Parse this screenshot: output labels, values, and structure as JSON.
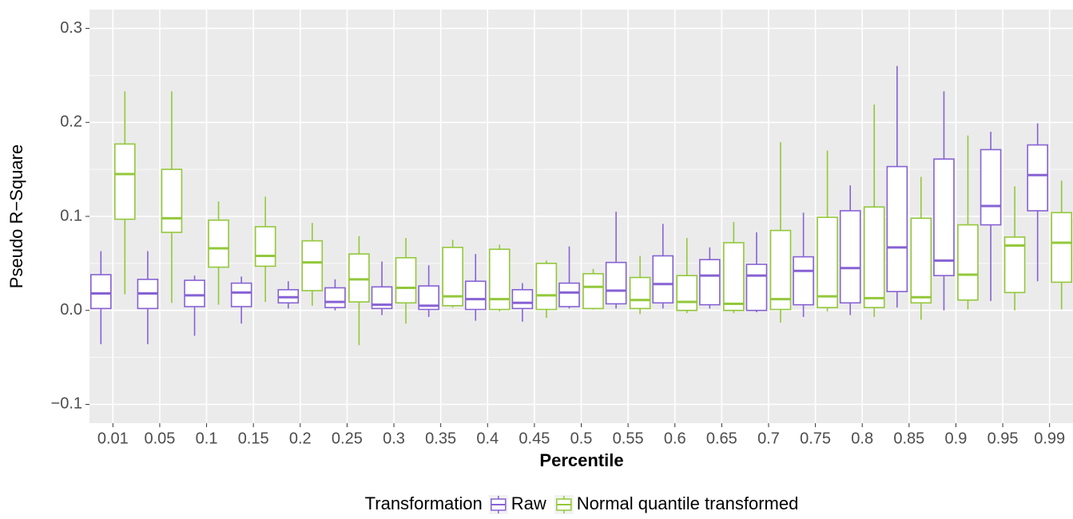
{
  "chart_data": {
    "type": "boxplot",
    "x_label": "Percentile",
    "y_label": "Pseudo R−Square",
    "legend_title": "Transformation",
    "legend_position": "bottom",
    "grid": true,
    "categories": [
      "0.01",
      "0.05",
      "0.1",
      "0.15",
      "0.2",
      "0.25",
      "0.3",
      "0.35",
      "0.4",
      "0.45",
      "0.5",
      "0.55",
      "0.6",
      "0.65",
      "0.7",
      "0.75",
      "0.8",
      "0.85",
      "0.9",
      "0.95",
      "0.99"
    ],
    "ylim": [
      -0.12,
      0.32
    ],
    "yticks": [
      {
        "value": -0.1,
        "label": "−0.1"
      },
      {
        "value": 0,
        "label": "0.0"
      },
      0.1,
      0.2,
      0.3
    ],
    "series": [
      {
        "name": "Raw",
        "color": "#8762d4",
        "low": [
          -0.036,
          -0.036,
          -0.027,
          -0.014,
          0.002,
          0,
          -0.005,
          -0.007,
          -0.011,
          -0.012,
          0.002,
          0.002,
          0.002,
          0.002,
          -0.002,
          -0.007,
          -0.005,
          0.003,
          0,
          0.01,
          0.031
        ],
        "q1": [
          0.002,
          0.002,
          0.004,
          0.004,
          0.008,
          0.003,
          0.002,
          0.001,
          0.001,
          0.002,
          0.004,
          0.007,
          0.008,
          0.006,
          0,
          0.006,
          0.008,
          0.02,
          0.037,
          0.091,
          0.106
        ],
        "median": [
          0.018,
          0.018,
          0.016,
          0.019,
          0.014,
          0.009,
          0.006,
          0.005,
          0.012,
          0.008,
          0.019,
          0.021,
          0.028,
          0.037,
          0.037,
          0.042,
          0.045,
          0.067,
          0.053,
          0.111,
          0.144
        ],
        "q3": [
          0.038,
          0.033,
          0.032,
          0.029,
          0.022,
          0.024,
          0.025,
          0.026,
          0.031,
          0.022,
          0.029,
          0.051,
          0.058,
          0.054,
          0.049,
          0.057,
          0.106,
          0.153,
          0.161,
          0.171,
          0.176
        ],
        "high": [
          0.063,
          0.063,
          0.037,
          0.036,
          0.031,
          0.033,
          0.052,
          0.048,
          0.06,
          0.029,
          0.068,
          0.105,
          0.092,
          0.067,
          0.083,
          0.104,
          0.133,
          0.26,
          0.233,
          0.19,
          0.199
        ]
      },
      {
        "name": "Normal quantile transformed",
        "color": "#93c83a",
        "low": [
          0.017,
          0.008,
          0.006,
          0.009,
          0.005,
          -0.037,
          -0.014,
          0.003,
          -0.001,
          -0.008,
          0.001,
          -0.004,
          -0.003,
          -0.003,
          -0.013,
          -0.001,
          -0.007,
          -0.01,
          0.001,
          0,
          0.001
        ],
        "q1": [
          0.097,
          0.083,
          0.046,
          0.047,
          0.021,
          0.009,
          0.008,
          0.005,
          0.001,
          0.001,
          0.002,
          0.002,
          0,
          0,
          0.001,
          0.003,
          0.003,
          0.008,
          0.011,
          0.019,
          0.03
        ],
        "median": [
          0.145,
          0.098,
          0.066,
          0.058,
          0.051,
          0.033,
          0.024,
          0.015,
          0.012,
          0.016,
          0.025,
          0.011,
          0.009,
          0.007,
          0.012,
          0.015,
          0.013,
          0.014,
          0.038,
          0.069,
          0.072
        ],
        "q3": [
          0.177,
          0.15,
          0.096,
          0.089,
          0.074,
          0.06,
          0.056,
          0.067,
          0.065,
          0.05,
          0.039,
          0.035,
          0.037,
          0.072,
          0.085,
          0.099,
          0.11,
          0.098,
          0.091,
          0.078,
          0.104
        ],
        "high": [
          0.233,
          0.233,
          0.116,
          0.121,
          0.093,
          0.079,
          0.077,
          0.075,
          0.07,
          0.053,
          0.044,
          0.058,
          0.077,
          0.094,
          0.179,
          0.17,
          0.219,
          0.142,
          0.186,
          0.132,
          0.138
        ]
      }
    ]
  }
}
